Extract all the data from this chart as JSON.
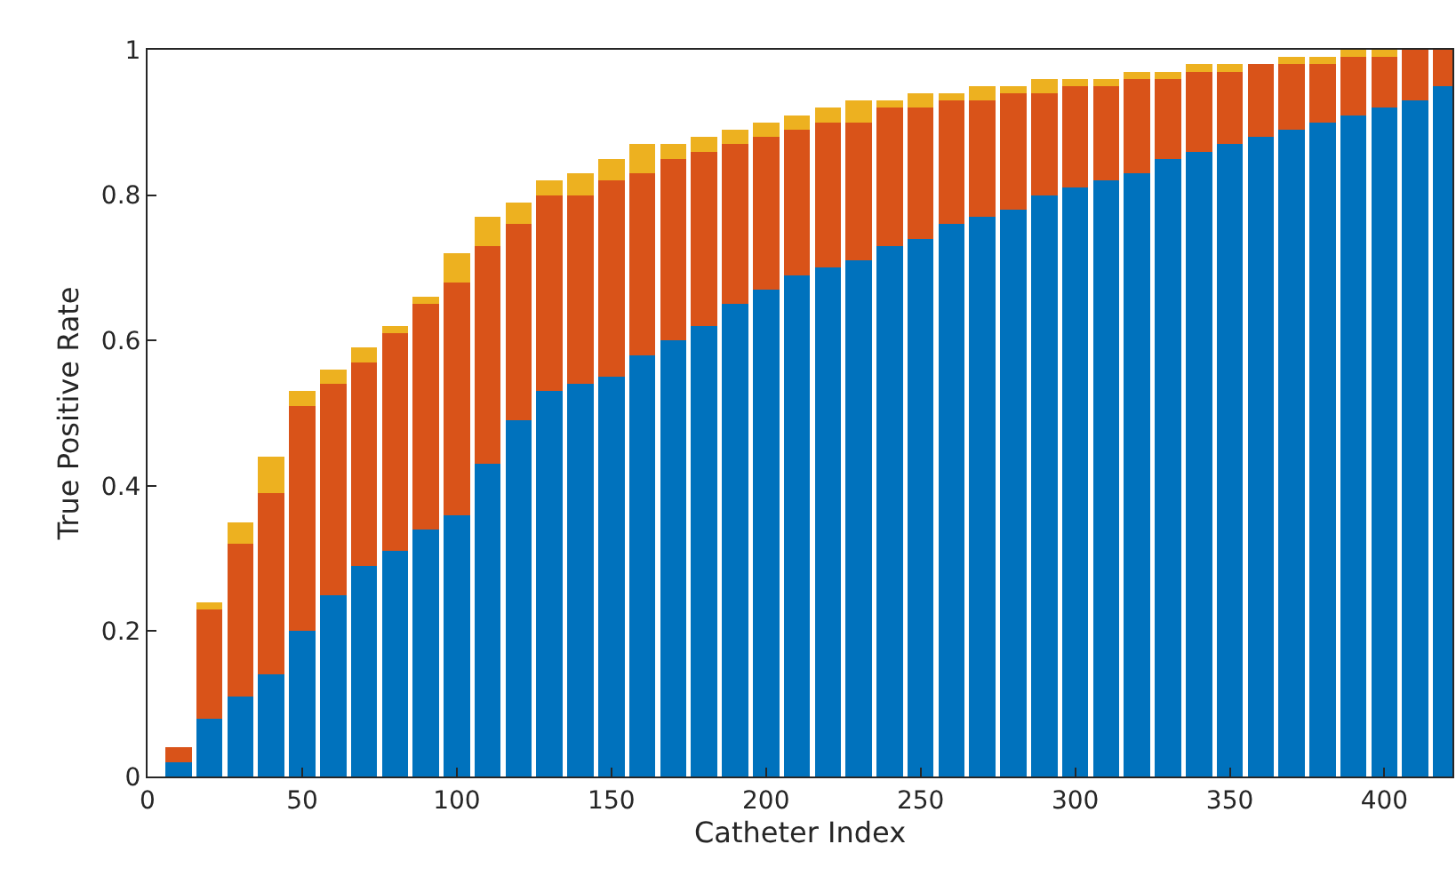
{
  "chart_data": {
    "type": "bar",
    "stacked": true,
    "xlabel": "Catheter Index",
    "ylabel": "True Positive Rate",
    "x": [
      10,
      20,
      30,
      40,
      50,
      60,
      70,
      80,
      90,
      100,
      110,
      120,
      130,
      140,
      150,
      160,
      170,
      180,
      190,
      200,
      210,
      220,
      230,
      240,
      250,
      260,
      270,
      280,
      290,
      300,
      310,
      320,
      330,
      340,
      350,
      360,
      370,
      380,
      390,
      400,
      410,
      420
    ],
    "series": [
      {
        "color": "#0072bd",
        "values": [
          0.02,
          0.08,
          0.11,
          0.14,
          0.2,
          0.25,
          0.29,
          0.31,
          0.34,
          0.36,
          0.43,
          0.49,
          0.53,
          0.54,
          0.55,
          0.58,
          0.6,
          0.62,
          0.65,
          0.67,
          0.69,
          0.7,
          0.71,
          0.73,
          0.74,
          0.76,
          0.77,
          0.78,
          0.8,
          0.81,
          0.82,
          0.83,
          0.85,
          0.86,
          0.87,
          0.88,
          0.89,
          0.9,
          0.91,
          0.92,
          0.93,
          0.95
        ]
      },
      {
        "color": "#d95319",
        "values": [
          0.02,
          0.15,
          0.21,
          0.25,
          0.31,
          0.29,
          0.28,
          0.3,
          0.31,
          0.32,
          0.3,
          0.27,
          0.27,
          0.26,
          0.27,
          0.25,
          0.25,
          0.24,
          0.22,
          0.21,
          0.2,
          0.2,
          0.19,
          0.19,
          0.18,
          0.17,
          0.16,
          0.16,
          0.14,
          0.14,
          0.13,
          0.13,
          0.11,
          0.11,
          0.1,
          0.1,
          0.09,
          0.08,
          0.08,
          0.07,
          0.07,
          0.05
        ]
      },
      {
        "color": "#edb120",
        "values": [
          0,
          0.01,
          0.03,
          0.05,
          0.02,
          0.02,
          0.02,
          0.01,
          0.01,
          0.04,
          0.04,
          0.03,
          0.02,
          0.03,
          0.03,
          0.04,
          0.02,
          0.02,
          0.02,
          0.02,
          0.02,
          0.02,
          0.03,
          0.01,
          0.02,
          0.01,
          0.02,
          0.01,
          0.02,
          0.01,
          0.01,
          0.01,
          0.01,
          0.01,
          0.01,
          0,
          0.01,
          0.01,
          0.01,
          0.01,
          0,
          0
        ]
      }
    ],
    "xlim": [
      0,
      422
    ],
    "xticks": [
      0,
      50,
      100,
      150,
      200,
      250,
      300,
      350,
      400
    ],
    "ylim": [
      0,
      1
    ],
    "yticks": [
      0,
      0.2,
      0.4,
      0.6,
      0.8,
      1
    ]
  }
}
